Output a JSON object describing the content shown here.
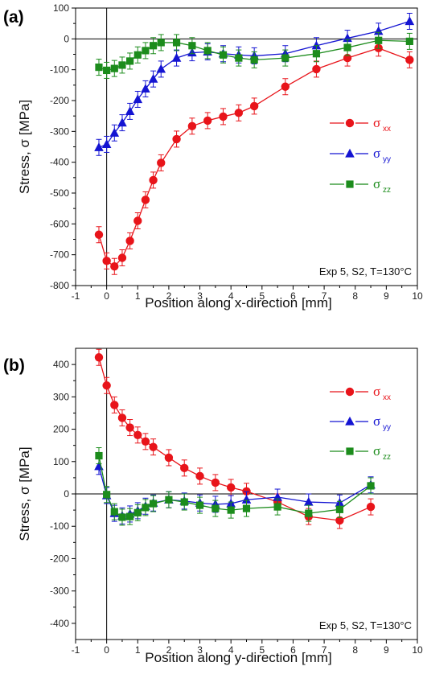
{
  "colors": {
    "xx": "#e8141a",
    "yy": "#1414d2",
    "zz": "#1c8c1c"
  },
  "chart_data": [
    {
      "type": "line",
      "panel_label": "(a)",
      "xlabel": "Position along x-direction [mm]",
      "ylabel": "Stress, σ [MPa]",
      "xlim": [
        -1,
        10
      ],
      "ylim": [
        -800,
        100
      ],
      "xticks": [
        -1,
        0,
        1,
        2,
        3,
        4,
        5,
        6,
        7,
        8,
        9,
        10
      ],
      "yticks": [
        -800,
        -700,
        -600,
        -500,
        -400,
        -300,
        -200,
        -100,
        0,
        100
      ],
      "annotation": "Exp 5, S2, T=130°C",
      "legend_position": "middle-right",
      "series": [
        {
          "key": "xx",
          "label": "σ",
          "sub": "xx",
          "marker": "circle",
          "x": [
            -0.25,
            0,
            0.25,
            0.5,
            0.75,
            1,
            1.25,
            1.5,
            1.75,
            2.25,
            2.75,
            3.25,
            3.75,
            4.25,
            4.75,
            5.75,
            6.75,
            7.75,
            8.75,
            9.75
          ],
          "y": [
            -635,
            -720,
            -738,
            -710,
            -655,
            -590,
            -522,
            -458,
            -402,
            -325,
            -283,
            -265,
            -252,
            -240,
            -218,
            -155,
            -98,
            -62,
            -30,
            -68
          ]
        },
        {
          "key": "yy",
          "label": "σ",
          "sub": "yy",
          "marker": "triangle",
          "x": [
            -0.25,
            0,
            0.25,
            0.5,
            0.75,
            1,
            1.25,
            1.5,
            1.75,
            2.25,
            2.75,
            3.25,
            3.75,
            4.25,
            4.75,
            5.75,
            6.75,
            7.75,
            8.75,
            9.75
          ],
          "y": [
            -352,
            -342,
            -305,
            -272,
            -235,
            -196,
            -162,
            -130,
            -98,
            -62,
            -45,
            -42,
            -48,
            -52,
            -55,
            -48,
            -22,
            2,
            25,
            57
          ]
        },
        {
          "key": "zz",
          "label": "σ",
          "sub": "zz",
          "marker": "square",
          "x": [
            -0.25,
            0,
            0.25,
            0.5,
            0.75,
            1,
            1.25,
            1.5,
            1.75,
            2.25,
            2.75,
            3.25,
            3.75,
            4.25,
            4.75,
            5.75,
            6.75,
            7.75,
            8.75,
            9.75
          ],
          "y": [
            -92,
            -102,
            -96,
            -85,
            -72,
            -52,
            -38,
            -22,
            -12,
            -12,
            -22,
            -38,
            -52,
            -62,
            -68,
            -62,
            -48,
            -28,
            -5,
            -8
          ]
        }
      ]
    },
    {
      "type": "line",
      "panel_label": "(b)",
      "xlabel": "Position along y-direction [mm]",
      "ylabel": "Stress, σ [MPa]",
      "xlim": [
        -1,
        10
      ],
      "ylim": [
        -450,
        450
      ],
      "xticks": [
        -1,
        0,
        1,
        2,
        3,
        4,
        5,
        6,
        7,
        8,
        9,
        10
      ],
      "yticks": [
        -400,
        -300,
        -200,
        -100,
        0,
        100,
        200,
        300,
        400
      ],
      "annotation": "Exp 5, S2, T=130°C",
      "legend_position": "top-right",
      "series": [
        {
          "key": "xx",
          "label": "σ",
          "sub": "xx",
          "marker": "circle",
          "x": [
            -0.25,
            0,
            0.25,
            0.5,
            0.75,
            1,
            1.25,
            1.5,
            2,
            2.5,
            3,
            3.5,
            4,
            4.5,
            5.5,
            6.5,
            7.5,
            8.5
          ],
          "y": [
            422,
            335,
            275,
            235,
            205,
            182,
            162,
            145,
            112,
            80,
            55,
            35,
            20,
            8,
            -25,
            -70,
            -82,
            -40
          ]
        },
        {
          "key": "yy",
          "label": "σ",
          "sub": "yy",
          "marker": "triangle",
          "x": [
            -0.25,
            0,
            0.25,
            0.5,
            0.75,
            1,
            1.25,
            1.5,
            2,
            2.5,
            3,
            3.5,
            4,
            4.5,
            5.5,
            6.5,
            7.5,
            8.5
          ],
          "y": [
            85,
            -5,
            -60,
            -68,
            -62,
            -52,
            -38,
            -28,
            -18,
            -22,
            -28,
            -32,
            -30,
            -18,
            -10,
            -25,
            -28,
            28
          ]
        },
        {
          "key": "zz",
          "label": "σ",
          "sub": "zz",
          "marker": "square",
          "x": [
            -0.25,
            0,
            0.25,
            0.5,
            0.75,
            1,
            1.25,
            1.5,
            2,
            2.5,
            3,
            3.5,
            4,
            4.5,
            5.5,
            6.5,
            7.5,
            8.5
          ],
          "y": [
            118,
            -2,
            -55,
            -72,
            -70,
            -58,
            -42,
            -30,
            -18,
            -25,
            -35,
            -45,
            -50,
            -45,
            -40,
            -60,
            -48,
            25
          ]
        }
      ]
    }
  ]
}
